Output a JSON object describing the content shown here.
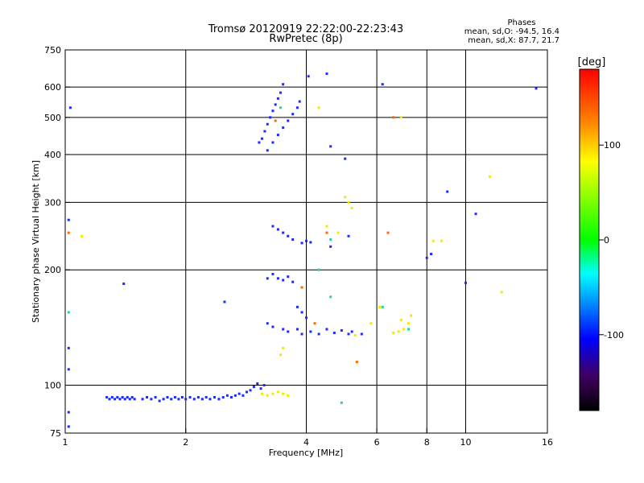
{
  "chart_data": {
    "type": "scatter",
    "title": "Tromsø 20120919 22:22:00-22:23:43",
    "subtitle": "RwPretec (8p)",
    "xlabel": "Frequency [MHz]",
    "ylabel": "Stationary phase Virtual Height [km]",
    "x_scale": "log",
    "y_scale": "log",
    "xlim": [
      1,
      16
    ],
    "ylim": [
      75,
      750
    ],
    "x_ticks": [
      1,
      2,
      4,
      6,
      8,
      10,
      16
    ],
    "x_tick_labels": [
      "1",
      "2",
      "4",
      "6",
      "8",
      "10",
      "16"
    ],
    "x_gridlines": [
      2,
      4,
      6,
      8,
      10
    ],
    "y_ticks": [
      75,
      100,
      200,
      300,
      400,
      500,
      600,
      750
    ],
    "y_tick_labels": [
      "75",
      "100",
      "200",
      "300",
      "400",
      "500",
      "600",
      "750"
    ],
    "y_gridlines": [
      100,
      200,
      300,
      400,
      500,
      600
    ],
    "grid": true,
    "stats": {
      "heading": "Phases",
      "line_o": "mean, sd,O: -94.5, 16.4",
      "line_x": "mean, sd,X: 87.7, 21.7"
    },
    "colorbar": {
      "label": "[deg]",
      "range": [
        -180,
        180
      ],
      "ticks": [
        100,
        0,
        -100
      ],
      "tick_labels": [
        "100",
        "0",
        "-100"
      ],
      "colors": [
        "#ff0000",
        "#ff8000",
        "#ffff00",
        "#00ff00",
        "#00ffff",
        "#0000ff",
        "#000000"
      ]
    },
    "series": [
      {
        "color_hint": "blue",
        "points": [
          [
            1.27,
            93
          ],
          [
            1.29,
            92
          ],
          [
            1.31,
            93
          ],
          [
            1.33,
            92
          ],
          [
            1.35,
            93
          ],
          [
            1.37,
            92
          ],
          [
            1.39,
            93
          ],
          [
            1.41,
            92
          ],
          [
            1.43,
            93
          ],
          [
            1.45,
            92
          ],
          [
            1.47,
            93
          ],
          [
            1.49,
            92
          ],
          [
            1.56,
            92
          ],
          [
            1.6,
            93
          ],
          [
            1.64,
            92
          ],
          [
            1.68,
            93
          ],
          [
            1.72,
            91
          ],
          [
            1.76,
            92
          ],
          [
            1.8,
            93
          ],
          [
            1.84,
            92
          ],
          [
            1.88,
            93
          ],
          [
            1.92,
            92
          ],
          [
            1.96,
            93
          ],
          [
            2.0,
            92
          ],
          [
            2.05,
            93
          ],
          [
            2.1,
            92
          ],
          [
            2.15,
            93
          ],
          [
            2.2,
            92
          ],
          [
            2.25,
            93
          ],
          [
            2.3,
            92
          ],
          [
            2.36,
            93
          ],
          [
            2.42,
            92
          ],
          [
            2.48,
            93
          ],
          [
            2.54,
            94
          ],
          [
            2.6,
            93
          ],
          [
            2.66,
            94
          ],
          [
            2.72,
            95
          ],
          [
            2.78,
            94
          ],
          [
            2.84,
            96
          ],
          [
            2.9,
            97
          ],
          [
            2.96,
            99
          ],
          [
            3.02,
            101
          ],
          [
            3.08,
            98
          ],
          [
            3.14,
            100
          ],
          [
            3.05,
            430
          ],
          [
            3.1,
            440
          ],
          [
            3.15,
            460
          ],
          [
            3.2,
            480
          ],
          [
            3.25,
            500
          ],
          [
            3.3,
            520
          ],
          [
            3.35,
            540
          ],
          [
            3.4,
            560
          ],
          [
            3.45,
            580
          ],
          [
            3.5,
            610
          ],
          [
            3.2,
            410
          ],
          [
            3.3,
            430
          ],
          [
            3.4,
            450
          ],
          [
            3.5,
            470
          ],
          [
            3.6,
            490
          ],
          [
            3.7,
            510
          ],
          [
            3.8,
            530
          ],
          [
            3.85,
            550
          ],
          [
            3.3,
            260
          ],
          [
            3.4,
            255
          ],
          [
            3.5,
            250
          ],
          [
            3.6,
            245
          ],
          [
            3.7,
            240
          ],
          [
            3.9,
            235
          ],
          [
            4.0,
            238
          ],
          [
            4.1,
            236
          ],
          [
            3.3,
            195
          ],
          [
            3.4,
            190
          ],
          [
            3.5,
            188
          ],
          [
            3.6,
            192
          ],
          [
            3.7,
            186
          ],
          [
            3.2,
            190
          ],
          [
            3.2,
            145
          ],
          [
            3.3,
            142
          ],
          [
            3.5,
            140
          ],
          [
            3.6,
            138
          ],
          [
            3.8,
            140
          ],
          [
            3.9,
            136
          ],
          [
            4.1,
            138
          ],
          [
            4.3,
            136
          ],
          [
            4.5,
            140
          ],
          [
            4.7,
            137
          ],
          [
            4.9,
            139
          ],
          [
            5.1,
            136
          ],
          [
            3.8,
            160
          ],
          [
            3.9,
            155
          ],
          [
            4.0,
            150
          ],
          [
            5.2,
            138
          ],
          [
            5.5,
            136
          ],
          [
            2.5,
            165
          ],
          [
            1.4,
            184
          ],
          [
            1.02,
            110
          ],
          [
            1.02,
            85
          ],
          [
            1.02,
            78
          ],
          [
            1.02,
            125
          ],
          [
            1.02,
            270
          ],
          [
            1.03,
            530
          ],
          [
            4.05,
            640
          ],
          [
            4.5,
            650
          ],
          [
            6.2,
            610
          ],
          [
            5.0,
            390
          ],
          [
            5.1,
            245
          ],
          [
            4.6,
            230
          ],
          [
            8.0,
            215
          ],
          [
            8.2,
            220
          ],
          [
            9.0,
            320
          ],
          [
            10.6,
            280
          ],
          [
            15.0,
            595
          ],
          [
            4.6,
            420
          ],
          [
            10.0,
            185
          ]
        ]
      },
      {
        "color_hint": "yellow",
        "points": [
          [
            3.1,
            95
          ],
          [
            3.2,
            94
          ],
          [
            3.3,
            95
          ],
          [
            3.4,
            96
          ],
          [
            3.5,
            95
          ],
          [
            3.6,
            94
          ],
          [
            3.45,
            120
          ],
          [
            3.5,
            125
          ],
          [
            4.3,
            530
          ],
          [
            5.0,
            310
          ],
          [
            5.1,
            300
          ],
          [
            5.2,
            290
          ],
          [
            4.5,
            260
          ],
          [
            4.8,
            250
          ],
          [
            6.6,
            137
          ],
          [
            6.8,
            138
          ],
          [
            7.0,
            140
          ],
          [
            7.2,
            145
          ],
          [
            6.9,
            148
          ],
          [
            7.3,
            152
          ],
          [
            5.8,
            145
          ],
          [
            5.3,
            135
          ],
          [
            6.1,
            160
          ],
          [
            8.3,
            238
          ],
          [
            8.7,
            238
          ],
          [
            11.5,
            350
          ],
          [
            12.3,
            175
          ],
          [
            1.1,
            245
          ],
          [
            6.9,
            500
          ]
        ]
      },
      {
        "color_hint": "cyan-green",
        "points": [
          [
            1.02,
            155
          ],
          [
            3.45,
            530
          ],
          [
            4.3,
            200
          ],
          [
            4.9,
            90
          ],
          [
            6.2,
            160
          ],
          [
            7.2,
            140
          ],
          [
            4.6,
            240
          ],
          [
            4.6,
            170
          ]
        ]
      },
      {
        "color_hint": "orange-red",
        "points": [
          [
            3.35,
            490
          ],
          [
            1.02,
            250
          ],
          [
            5.35,
            115
          ],
          [
            6.6,
            500
          ],
          [
            4.5,
            250
          ],
          [
            6.4,
            250
          ],
          [
            4.2,
            145
          ],
          [
            3.9,
            180
          ]
        ]
      }
    ]
  }
}
